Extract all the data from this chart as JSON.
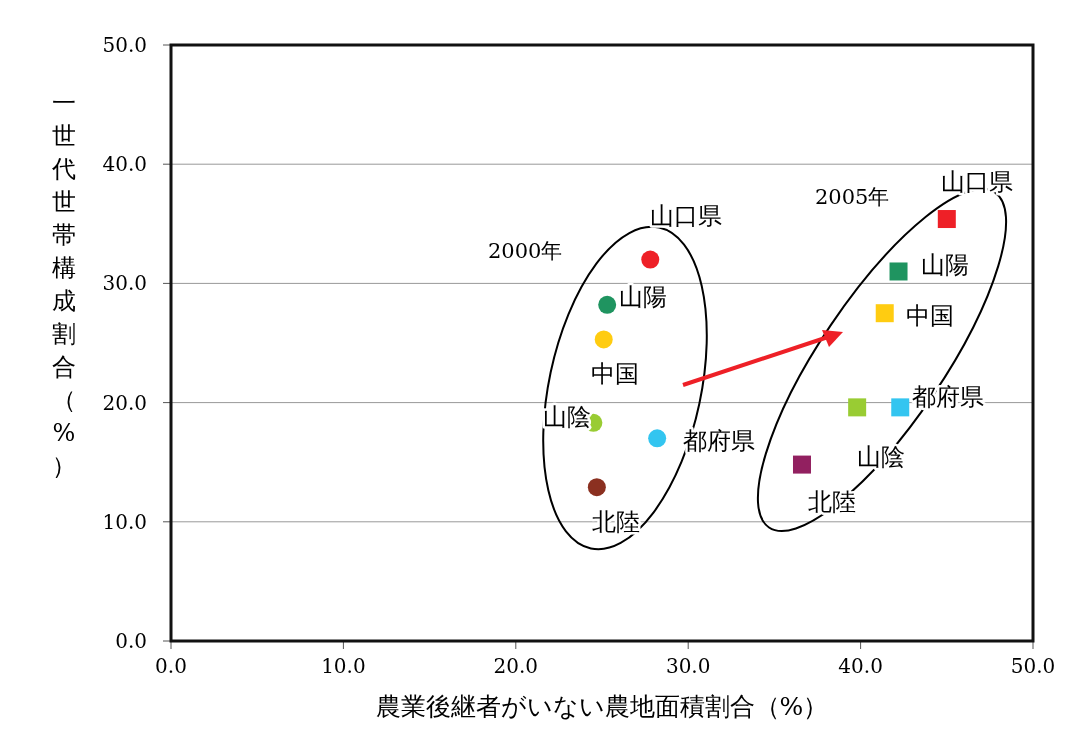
{
  "chart_data": {
    "type": "scatter",
    "xlabel": "農業後継者がいない農地面積割合（%）",
    "ylabel": "一世代世帯構成割合（%）",
    "xlim": [
      0,
      50
    ],
    "ylim": [
      0,
      50
    ],
    "xticks": [
      {
        "value": 0,
        "label": "0.0"
      },
      {
        "value": 10,
        "label": "10.0"
      },
      {
        "value": 20,
        "label": "20.0"
      },
      {
        "value": 30,
        "label": "30.0"
      },
      {
        "value": 40,
        "label": "40.0"
      },
      {
        "value": 50,
        "label": "50.0"
      }
    ],
    "yticks": [
      {
        "value": 0,
        "label": "0.0"
      },
      {
        "value": 10,
        "label": "10.0"
      },
      {
        "value": 20,
        "label": "20.0"
      },
      {
        "value": 30,
        "label": "30.0"
      },
      {
        "value": 40,
        "label": "40.0"
      },
      {
        "value": 50,
        "label": "50.0"
      }
    ],
    "grid": "y",
    "legend": false,
    "annotations": [
      "2000年",
      "2005年"
    ],
    "series": [
      {
        "name": "山口県",
        "marker": "circle",
        "color": "#ee2027",
        "x": [
          27.8
        ],
        "values": [
          32.0
        ]
      },
      {
        "name": "山陽",
        "marker": "circle",
        "color": "#1f9460",
        "x": [
          25.3
        ],
        "values": [
          28.2
        ]
      },
      {
        "name": "中国",
        "marker": "circle",
        "color": "#ffcc11",
        "x": [
          25.1
        ],
        "values": [
          25.3
        ]
      },
      {
        "name": "山陰",
        "marker": "circle",
        "color": "#99cc33",
        "x": [
          24.5
        ],
        "values": [
          18.3
        ]
      },
      {
        "name": "都府県",
        "marker": "circle",
        "color": "#33c5f0",
        "x": [
          28.2
        ],
        "values": [
          17.0
        ]
      },
      {
        "name": "北陸",
        "marker": "circle",
        "color": "#8b3020",
        "x": [
          24.7
        ],
        "values": [
          12.9
        ]
      },
      {
        "name": "山口県",
        "marker": "square",
        "color": "#ee2027",
        "x": [
          45.0
        ],
        "values": [
          35.4
        ]
      },
      {
        "name": "山陽",
        "marker": "square",
        "color": "#1f9460",
        "x": [
          42.2
        ],
        "values": [
          31.0
        ]
      },
      {
        "name": "中国",
        "marker": "square",
        "color": "#ffcc11",
        "x": [
          41.4
        ],
        "values": [
          27.5
        ]
      },
      {
        "name": "山陰",
        "marker": "square",
        "color": "#99cc33",
        "x": [
          39.8
        ],
        "values": [
          19.6
        ]
      },
      {
        "name": "都府県",
        "marker": "square",
        "color": "#33c5f0",
        "x": [
          42.3
        ],
        "values": [
          19.6
        ]
      },
      {
        "name": "北陸",
        "marker": "square",
        "color": "#922060",
        "x": [
          36.6
        ],
        "values": [
          14.8
        ]
      }
    ]
  }
}
